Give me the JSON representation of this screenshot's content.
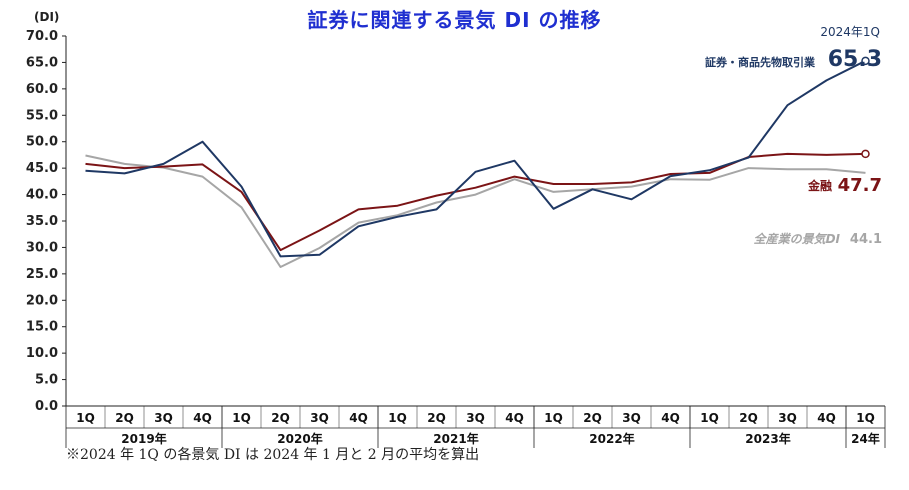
{
  "chart_data": {
    "type": "line",
    "title": "証券に関連する景気 DI の推移",
    "ylabel": "(DI)",
    "ylim": [
      0,
      70
    ],
    "yticks": [
      "0.0",
      "5.0",
      "10.0",
      "15.0",
      "20.0",
      "25.0",
      "30.0",
      "35.0",
      "40.0",
      "45.0",
      "50.0",
      "55.0",
      "60.0",
      "65.0",
      "70.0"
    ],
    "categories": [
      "1Q",
      "2Q",
      "3Q",
      "4Q",
      "1Q",
      "2Q",
      "3Q",
      "4Q",
      "1Q",
      "2Q",
      "3Q",
      "4Q",
      "1Q",
      "2Q",
      "3Q",
      "4Q",
      "1Q",
      "2Q",
      "3Q",
      "4Q",
      "1Q"
    ],
    "year_groups": [
      {
        "label": "2019年",
        "span": 4
      },
      {
        "label": "2020年",
        "span": 4
      },
      {
        "label": "2021年",
        "span": 4
      },
      {
        "label": "2022年",
        "span": 4
      },
      {
        "label": "2023年",
        "span": 4
      },
      {
        "label": "24年",
        "span": 1
      }
    ],
    "grid": false,
    "series": [
      {
        "name": "証券・商品先物取引業",
        "color": "#1f3864",
        "values": [
          44.5,
          44.0,
          45.8,
          50.0,
          41.5,
          28.3,
          28.6,
          34.0,
          35.8,
          37.2,
          44.3,
          46.4,
          37.3,
          41.0,
          39.1,
          43.5,
          44.6,
          47.0,
          56.9,
          61.6,
          65.3
        ]
      },
      {
        "name": "金融",
        "color": "#7b1416",
        "values": [
          45.8,
          45.0,
          45.3,
          45.7,
          40.5,
          29.5,
          33.2,
          37.2,
          37.9,
          39.8,
          41.3,
          43.4,
          42.0,
          42.0,
          42.3,
          43.9,
          44.1,
          47.1,
          47.7,
          47.5,
          47.7
        ]
      },
      {
        "name": "全産業の景気DI",
        "color": "#a6a6a6",
        "values": [
          47.4,
          45.8,
          45.1,
          43.4,
          37.6,
          26.3,
          29.9,
          34.7,
          36.1,
          38.5,
          40.0,
          42.9,
          40.5,
          41.0,
          41.5,
          42.9,
          42.8,
          45.0,
          44.8,
          44.8,
          44.1
        ]
      }
    ],
    "annotations": {
      "securities_period": "2024年1Q",
      "securities_label": "証券・商品先物取引業",
      "securities_value": "65.3",
      "finance_label": "金融",
      "finance_value": "47.7",
      "allind_label": "全産業の景気DI",
      "allind_value": "44.1"
    }
  },
  "footnote": "※2024 年 1Q の各景気 DI は 2024 年 1 月と 2 月の平均を算出"
}
